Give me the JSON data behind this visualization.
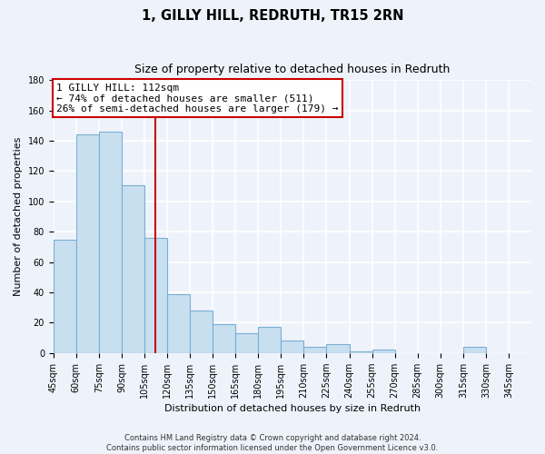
{
  "title": "1, GILLY HILL, REDRUTH, TR15 2RN",
  "subtitle": "Size of property relative to detached houses in Redruth",
  "xlabel": "Distribution of detached houses by size in Redruth",
  "ylabel": "Number of detached properties",
  "bins_left": [
    45,
    60,
    75,
    90,
    105,
    120,
    135,
    150,
    165,
    180,
    195,
    210,
    225,
    240,
    255,
    270,
    285,
    300,
    315,
    330,
    345
  ],
  "counts": [
    75,
    144,
    146,
    111,
    76,
    39,
    28,
    19,
    13,
    17,
    8,
    4,
    6,
    1,
    2,
    0,
    0,
    0,
    4,
    0,
    0
  ],
  "bin_width": 15,
  "bar_color": "#c8dff0",
  "bar_edgecolor": "#7aafd4",
  "property_size": 112,
  "redline_color": "#cc0000",
  "annotation_text": "1 GILLY HILL: 112sqm\n← 74% of detached houses are smaller (511)\n26% of semi-detached houses are larger (179) →",
  "annotation_boxcolor": "white",
  "annotation_boxedgecolor": "#cc0000",
  "ylim": [
    0,
    180
  ],
  "yticks": [
    0,
    20,
    40,
    60,
    80,
    100,
    120,
    140,
    160,
    180
  ],
  "xlim_left": 45,
  "xlim_right": 360,
  "footer_text": "Contains HM Land Registry data © Crown copyright and database right 2024.\nContains public sector information licensed under the Open Government Licence v3.0.",
  "background_color": "#eef3fb",
  "grid_color": "#ffffff",
  "grid_linewidth": 1.2,
  "title_fontsize": 10.5,
  "subtitle_fontsize": 9,
  "axis_label_fontsize": 8,
  "tick_fontsize": 7,
  "footer_fontsize": 6
}
